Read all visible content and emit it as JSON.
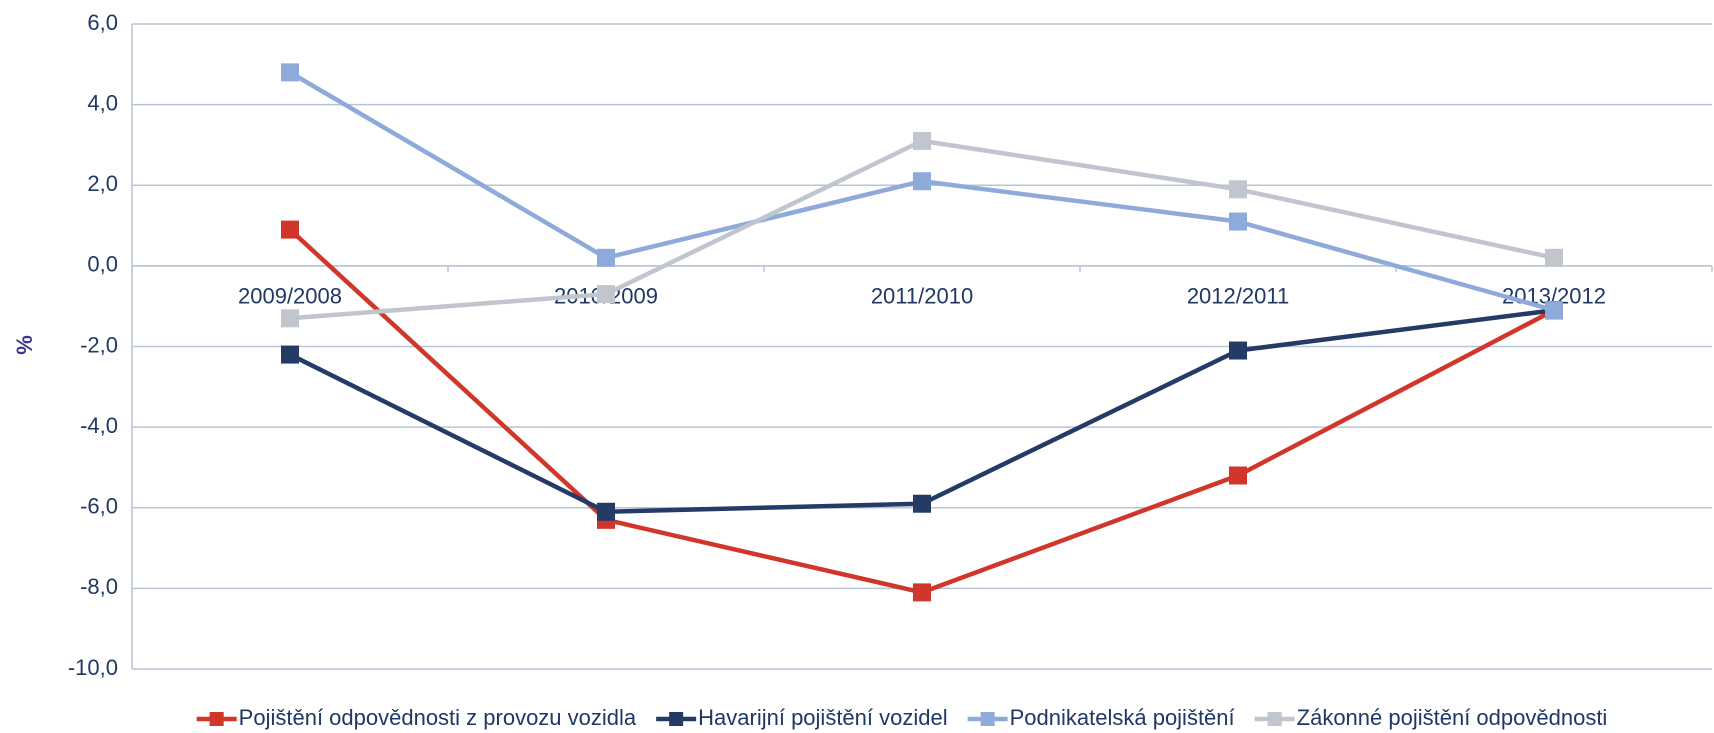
{
  "chart_data": {
    "type": "line",
    "y_label": "%",
    "categories": [
      "2009/2008",
      "2010/2009",
      "2011/2010",
      "2012/2011",
      "2013/2012"
    ],
    "series": [
      {
        "name": "Pojištění odpovědnosti z provozu vozidla",
        "color": "#d0362a",
        "values": [
          0.9,
          -6.3,
          -8.1,
          -5.2,
          -1.1
        ]
      },
      {
        "name": "Havarijní pojištění vozidel",
        "color": "#243b66",
        "values": [
          -2.2,
          -6.1,
          -5.9,
          -2.1,
          -1.1
        ]
      },
      {
        "name": "Podnikatelská pojištění",
        "color": "#8eaadb",
        "values": [
          4.8,
          0.2,
          2.1,
          1.1,
          -1.1
        ]
      },
      {
        "name": "Zákonné pojištění odpovědnosti",
        "color": "#c0c5ce",
        "values": [
          -1.3,
          -0.7,
          3.1,
          1.9,
          0.2
        ]
      }
    ],
    "ylim": [
      -10,
      6
    ],
    "yticks": [
      {
        "value": -10,
        "label": "-10,0"
      },
      {
        "value": -8,
        "label": "-8,0"
      },
      {
        "value": -6,
        "label": "-6,0"
      },
      {
        "value": -4,
        "label": "-4,0"
      },
      {
        "value": -2,
        "label": "-2,0"
      },
      {
        "value": 0,
        "label": "0,0"
      },
      {
        "value": 2,
        "label": "2,0"
      },
      {
        "value": 4,
        "label": "4,0"
      },
      {
        "value": 6,
        "label": "6,0"
      }
    ],
    "grid": true,
    "legend": "bottom"
  }
}
